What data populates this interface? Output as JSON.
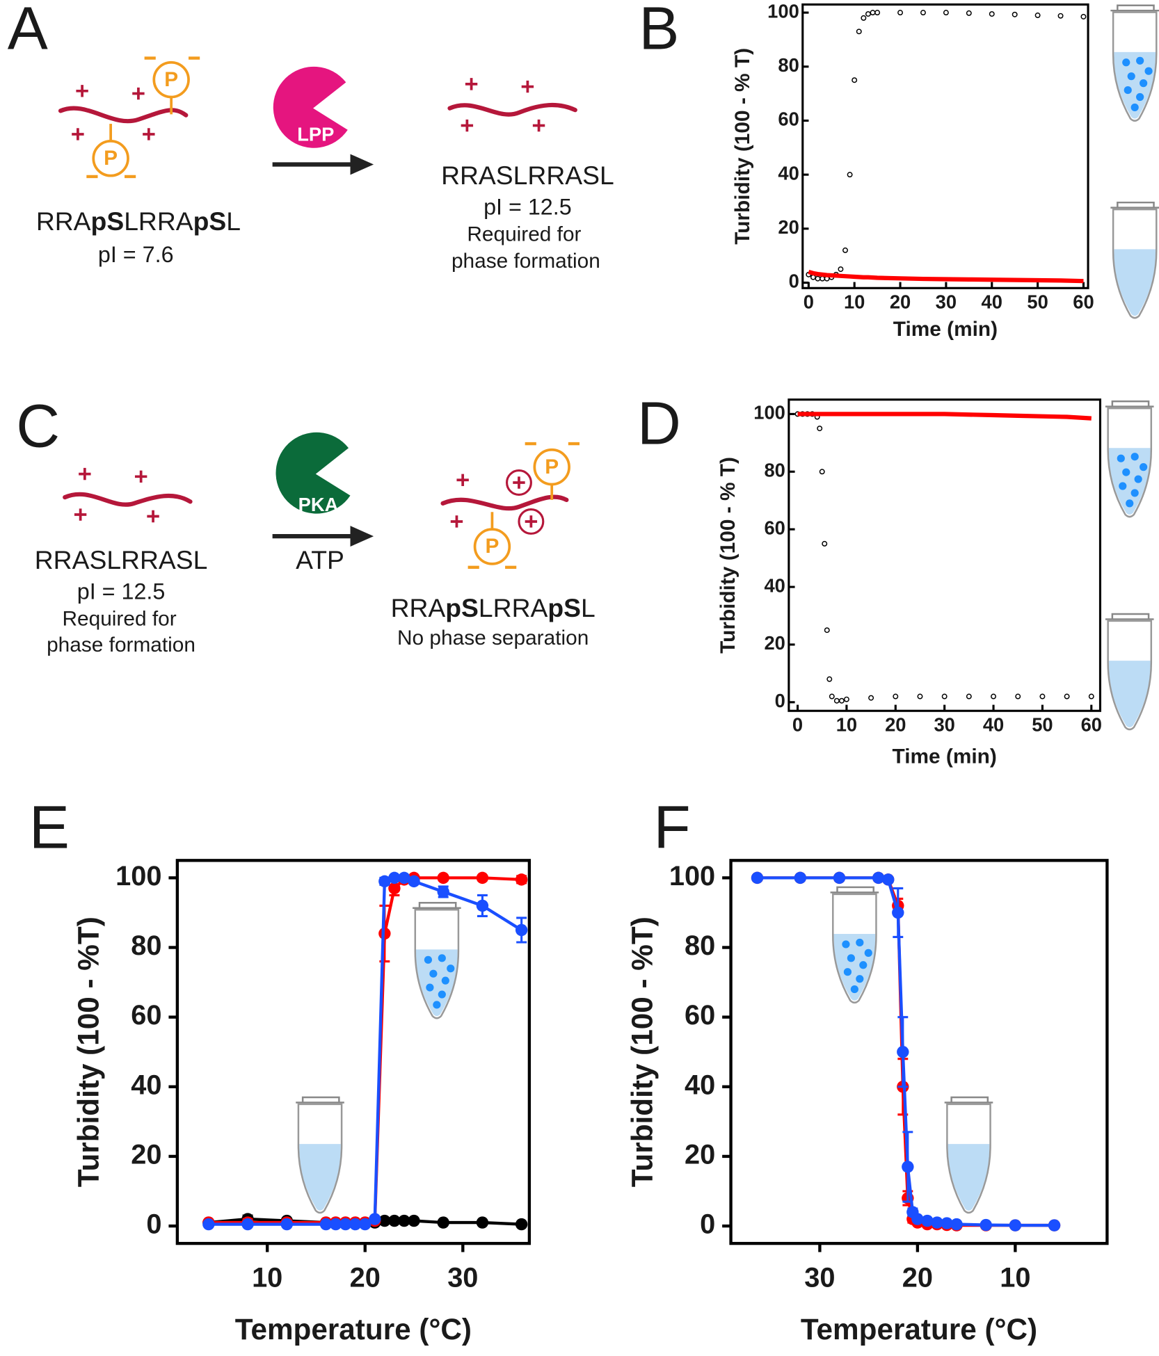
{
  "panel_labels": [
    "A",
    "B",
    "C",
    "D",
    "E",
    "F"
  ],
  "phospho_label": "P",
  "scheme_a": {
    "substrate_parts": [
      "RRA",
      "pS",
      "LRRA",
      "pS",
      "L"
    ],
    "substrate_pi": "pI = 7.6",
    "enzyme": "LPP",
    "product": "RRASLRRASL",
    "product_pi": "pI = 12.5",
    "product_note": [
      "Required for",
      "phase formation"
    ]
  },
  "scheme_c": {
    "substrate": "RRASLRRASL",
    "substrate_pi": "pI = 12.5",
    "substrate_note": [
      "Required for",
      "phase formation"
    ],
    "enzyme": "PKA",
    "cofactor": "ATP",
    "product_parts": [
      "RRA",
      "pS",
      "LRRA",
      "pS",
      "L"
    ],
    "product_note": "No phase separation"
  },
  "chart_data": [
    {
      "type": "line",
      "ylabel": "Turbidity (100 - % T)",
      "xlabel": "Time (min)",
      "x": [
        0,
        1,
        2,
        3,
        4,
        5,
        6,
        7,
        8,
        9,
        10,
        11,
        12,
        13,
        14,
        15,
        20,
        25,
        30,
        35,
        40,
        45,
        50,
        55,
        60
      ],
      "series": [
        {
          "color": "#000000",
          "marker": "open-circle",
          "values": [
            3,
            2,
            1.5,
            1.5,
            1.5,
            2,
            3,
            5,
            12,
            40,
            75,
            93,
            98,
            99.5,
            100,
            100,
            100,
            100,
            100,
            99.8,
            99.5,
            99.3,
            99,
            98.8,
            98.5
          ]
        },
        {
          "color": "#ff0000",
          "marker": "line",
          "values": [
            4,
            3.5,
            3.2,
            3,
            2.8,
            2.7,
            2.6,
            2.5,
            2.4,
            2.3,
            2.2,
            2.1,
            2,
            2,
            1.9,
            1.8,
            1.6,
            1.4,
            1.3,
            1.2,
            1.1,
            1,
            0.9,
            0.8,
            0.6
          ]
        }
      ],
      "xlim": [
        -1.3,
        61
      ],
      "ylim": [
        -2,
        103
      ],
      "xticks": [
        0,
        10,
        20,
        30,
        40,
        50,
        60
      ],
      "yticks": [
        0,
        20,
        40,
        60,
        80,
        100
      ]
    },
    {
      "type": "line",
      "ylabel": "Turbidity (100 - % T)",
      "xlabel": "Time (min)",
      "x": [
        0,
        1,
        2,
        3,
        4,
        4.5,
        5,
        5.5,
        6,
        6.5,
        7,
        8,
        9,
        10,
        15,
        20,
        25,
        30,
        35,
        40,
        45,
        50,
        55,
        60
      ],
      "series": [
        {
          "color": "#000000",
          "marker": "open-circle",
          "values": [
            100,
            100,
            100,
            100,
            99,
            95,
            80,
            55,
            25,
            8,
            2,
            0.5,
            0.5,
            1,
            1.5,
            2,
            2,
            2,
            2,
            2,
            2,
            2,
            2,
            2
          ]
        },
        {
          "color": "#ff0000",
          "marker": "line",
          "values": [
            100,
            100,
            100,
            100,
            100,
            100,
            100,
            100,
            100,
            100,
            100,
            100,
            100,
            100,
            100,
            100,
            100,
            100,
            99.8,
            99.6,
            99.4,
            99.2,
            99,
            98.5
          ]
        }
      ],
      "xlim": [
        -1.8,
        61.8
      ],
      "ylim": [
        -3,
        105
      ],
      "xticks": [
        0,
        10,
        20,
        30,
        40,
        50,
        60
      ],
      "yticks": [
        0,
        20,
        40,
        60,
        80,
        100
      ]
    },
    {
      "type": "line",
      "ylabel": "Turbidity (100 - %T)",
      "xlabel": "Temperature (°C)",
      "x": [
        4,
        8,
        12,
        16,
        17,
        18,
        19,
        20,
        21,
        22,
        23,
        24,
        25,
        28,
        32,
        36
      ],
      "series": [
        {
          "color": "#000000",
          "marker": "filled-circle",
          "values": [
            1,
            2,
            1.5,
            1,
            1,
            1,
            1,
            1,
            1,
            1.5,
            1.5,
            1.5,
            1.5,
            1,
            1,
            0.5
          ],
          "errors": [
            0,
            1,
            0.5,
            0,
            0,
            0,
            0,
            0,
            0,
            0,
            0,
            0,
            0,
            0,
            0,
            0
          ]
        },
        {
          "color": "#ff0000",
          "marker": "filled-circle",
          "values": [
            1,
            1,
            1,
            1,
            1,
            1,
            1,
            1,
            1.5,
            84,
            97,
            99.5,
            100,
            100,
            100,
            99.5
          ],
          "errors": [
            0,
            1,
            0.5,
            0,
            0,
            0,
            0,
            0,
            0,
            8,
            2,
            0.5,
            0,
            0,
            0,
            1
          ]
        },
        {
          "color": "#1a4fff",
          "marker": "filled-circle",
          "values": [
            0.5,
            0.5,
            0.5,
            0.5,
            0.5,
            0.5,
            0.5,
            0.5,
            2,
            99,
            100,
            100,
            99,
            96,
            92,
            85
          ],
          "errors": [
            0,
            0,
            0,
            0,
            0,
            0,
            0,
            0,
            0,
            1,
            0,
            0,
            0.5,
            1.5,
            3,
            3.5
          ]
        }
      ],
      "xlim": [
        0.8,
        36.8
      ],
      "ylim": [
        -5,
        105
      ],
      "xticks": [
        10,
        20,
        30
      ],
      "yticks": [
        0,
        20,
        40,
        60,
        80,
        100
      ]
    },
    {
      "type": "line",
      "ylabel": "Turbidity (100 - %T)",
      "xlabel": "Temperature (°C)",
      "x": [
        36.4,
        32,
        28,
        24,
        23,
        22,
        21.5,
        21,
        20.5,
        20,
        19,
        18,
        17,
        16,
        13,
        10,
        6
      ],
      "series": [
        {
          "color": "#ff0000",
          "marker": "filled-circle",
          "values": [
            100,
            100,
            100,
            100,
            99.5,
            92,
            40,
            8,
            2,
            1,
            0.5,
            0.5,
            0.3,
            0.2,
            0.2,
            0.2,
            0.2
          ],
          "errors": [
            0,
            0,
            0,
            0,
            0,
            2,
            8,
            2,
            1,
            0.5,
            0,
            0,
            0,
            0,
            0,
            0,
            0
          ]
        },
        {
          "color": "#1a4fff",
          "marker": "filled-circle",
          "values": [
            100,
            100,
            100,
            100,
            99.5,
            90,
            50,
            17,
            4,
            2,
            1.5,
            1,
            0.8,
            0.5,
            0.3,
            0.2,
            0.2
          ],
          "errors": [
            0,
            0,
            0,
            0,
            0,
            7,
            10,
            10,
            1,
            0.5,
            0,
            0,
            0,
            0,
            0,
            0,
            0
          ]
        }
      ],
      "xlim": [
        39.1,
        0.6
      ],
      "ylim": [
        -5,
        105
      ],
      "xticks": [
        30,
        20,
        10
      ],
      "yticks": [
        0,
        20,
        40,
        60,
        80,
        100
      ]
    }
  ]
}
